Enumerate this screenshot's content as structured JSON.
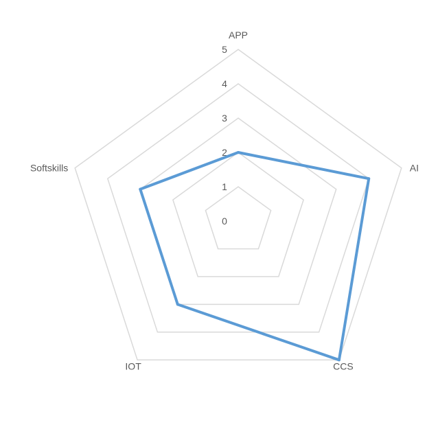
{
  "chart_data": {
    "type": "radar",
    "title": "",
    "categories": [
      "APP",
      "AI",
      "CCS",
      "IOT",
      "Softskills"
    ],
    "rlim": [
      0,
      5
    ],
    "ticks": [
      "0",
      "1",
      "2",
      "3",
      "4",
      "5"
    ],
    "grid": true,
    "legend": "none",
    "series": [
      {
        "values": [
          2,
          4,
          5,
          3,
          3
        ],
        "color": "#5b9bd5"
      }
    ],
    "grid_color": "#d9d9d9",
    "text_color": "#595959"
  }
}
